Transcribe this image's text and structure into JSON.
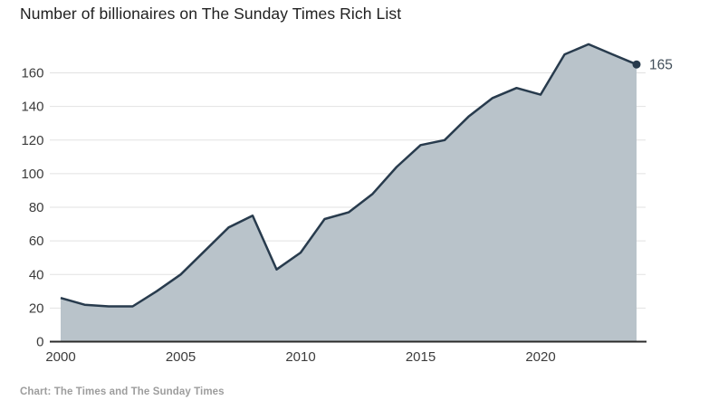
{
  "title": "Number of billionaires on The Sunday Times Rich List",
  "source": "Chart: The Times and The Sunday Times",
  "colors": {
    "line": "#283b4d",
    "area_fill": "#b9c3ca",
    "grid": "#e2e2e2",
    "axis": "#2b2b2b",
    "tick_text": "#3c3c3c",
    "title_text": "#1f1f1f",
    "source_text": "#9d9d9d",
    "annotation_text": "#414e59",
    "background": "#ffffff"
  },
  "chart_data": {
    "type": "area",
    "title": "Number of billionaires on The Sunday Times Rich List",
    "x": [
      2000,
      2001,
      2002,
      2003,
      2004,
      2005,
      2006,
      2007,
      2008,
      2009,
      2010,
      2011,
      2012,
      2013,
      2014,
      2015,
      2016,
      2017,
      2018,
      2019,
      2020,
      2021,
      2022,
      2023,
      2024
    ],
    "values": [
      26,
      22,
      21,
      21,
      30,
      40,
      54,
      68,
      75,
      43,
      53,
      73,
      77,
      88,
      104,
      117,
      120,
      134,
      145,
      151,
      147,
      171,
      177,
      171,
      165
    ],
    "xlabel": "",
    "ylabel": "",
    "x_ticks": [
      2000,
      2005,
      2010,
      2015,
      2020
    ],
    "y_ticks": [
      0,
      20,
      40,
      60,
      80,
      100,
      120,
      140,
      160
    ],
    "ylim": [
      0,
      180
    ],
    "grid": "horizontal",
    "legend": "none",
    "annotation": {
      "x": 2024,
      "value": 165,
      "label": "165"
    },
    "source": "Chart: The Times and The Sunday Times"
  }
}
